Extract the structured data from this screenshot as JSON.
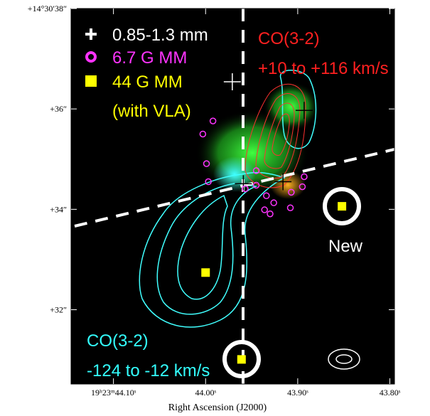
{
  "chart_data": {
    "type": "scatter",
    "xlabel": "Right Ascension (J2000)",
    "xlim": [
      44.146,
      43.795
    ],
    "ylim": [
      30.52,
      38.0
    ],
    "xticks": [
      {
        "value": 44.1,
        "label": "19ʰ23ᵐ44.10ˢ"
      },
      {
        "value": 44.0,
        "label": "44.00ˢ"
      },
      {
        "value": 43.9,
        "label": "43.90ˢ"
      },
      {
        "value": 43.8,
        "label": "43.80ˢ"
      }
    ],
    "yticks": [
      {
        "value": 38,
        "label": "+14°30′38″"
      },
      {
        "value": 36,
        "label": "+36″"
      },
      {
        "value": 34,
        "label": "+34″"
      },
      {
        "value": 32,
        "label": "+32″"
      }
    ],
    "series": [
      {
        "name": "0.85-1.3 mm",
        "color": "#ffffff",
        "marker": "cross",
        "x": [
          43.971,
          43.893,
          43.916,
          43.959
        ],
        "values": [
          36.54,
          35.97,
          34.55,
          34.51
        ]
      },
      {
        "name": "6.7 G MM",
        "color": "#ff33ff",
        "marker": "circle",
        "x": [
          43.992,
          44.003,
          43.999,
          43.997,
          43.945,
          43.934,
          43.926,
          43.936,
          43.93,
          43.907,
          43.895,
          43.893,
          43.945,
          43.957,
          43.908
        ],
        "values": [
          35.76,
          35.5,
          34.91,
          34.55,
          34.48,
          34.27,
          34.13,
          33.99,
          33.91,
          34.34,
          34.45,
          34.65,
          34.77,
          34.41,
          34.03
        ]
      },
      {
        "name": "44 G MM",
        "color": "#ffff00",
        "marker": "square",
        "x": [
          44.0,
          43.852,
          43.961
        ],
        "values": [
          32.74,
          34.06,
          31.01
        ]
      }
    ],
    "legend_note": "(with VLA)",
    "annotations": [
      {
        "text": "CO(3-2)",
        "color": "#ff2020"
      },
      {
        "text": "+10 to +116 km/s",
        "color": "#ff2020"
      },
      {
        "text": "CO(3-2)",
        "color": "#33ffff"
      },
      {
        "text": "-124 to -12 km/s",
        "color": "#33ffff"
      },
      {
        "text": "New",
        "color": "#ffffff"
      }
    ]
  }
}
